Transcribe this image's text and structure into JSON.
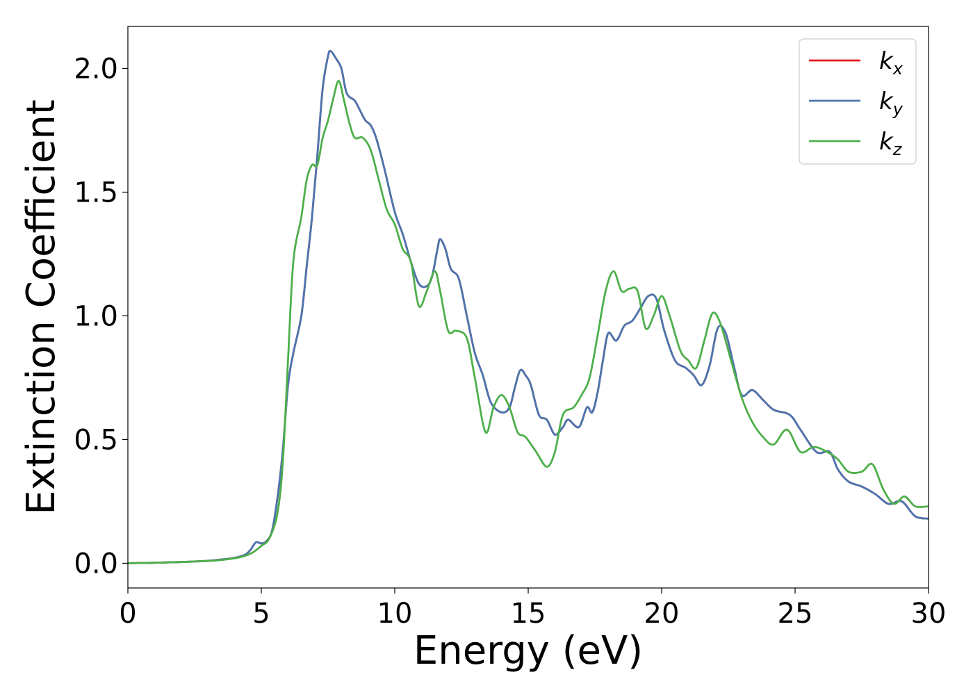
{
  "chart_data": {
    "type": "line",
    "xlabel": "Energy (eV)",
    "ylabel": "Extinction Coefficient",
    "xlim": [
      0,
      30
    ],
    "ylim": [
      -0.1,
      2.17
    ],
    "xticks": [
      "0",
      "5",
      "10",
      "15",
      "20",
      "25",
      "30"
    ],
    "xtick_values": [
      0,
      5,
      10,
      15,
      20,
      25,
      30
    ],
    "yticks": [
      "0.0",
      "0.5",
      "1.0",
      "1.5",
      "2.0"
    ],
    "ytick_values": [
      0.0,
      0.5,
      1.0,
      1.5,
      2.0
    ],
    "grid": false,
    "legend_position": "top-right",
    "series": [
      {
        "name": "k",
        "subscript": "x",
        "color": "#e41a1c",
        "points": [
          [
            0,
            0
          ],
          [
            1,
            0.002
          ],
          [
            2,
            0.005
          ],
          [
            3,
            0.01
          ],
          [
            3.5,
            0.015
          ],
          [
            4,
            0.022
          ],
          [
            4.4,
            0.035
          ],
          [
            4.6,
            0.055
          ],
          [
            4.8,
            0.085
          ],
          [
            5.0,
            0.08
          ],
          [
            5.2,
            0.09
          ],
          [
            5.4,
            0.13
          ],
          [
            5.6,
            0.26
          ],
          [
            5.8,
            0.45
          ],
          [
            6.0,
            0.72
          ],
          [
            6.2,
            0.85
          ],
          [
            6.5,
            1.0
          ],
          [
            6.7,
            1.2
          ],
          [
            6.9,
            1.4
          ],
          [
            7.1,
            1.65
          ],
          [
            7.3,
            1.92
          ],
          [
            7.5,
            2.05
          ],
          [
            7.6,
            2.07
          ],
          [
            7.8,
            2.04
          ],
          [
            8.0,
            2.0
          ],
          [
            8.2,
            1.9
          ],
          [
            8.5,
            1.87
          ],
          [
            8.7,
            1.83
          ],
          [
            8.9,
            1.79
          ],
          [
            9.1,
            1.77
          ],
          [
            9.3,
            1.72
          ],
          [
            9.6,
            1.6
          ],
          [
            10.0,
            1.42
          ],
          [
            10.3,
            1.33
          ],
          [
            10.6,
            1.22
          ],
          [
            10.9,
            1.13
          ],
          [
            11.2,
            1.12
          ],
          [
            11.4,
            1.16
          ],
          [
            11.6,
            1.27
          ],
          [
            11.7,
            1.31
          ],
          [
            11.9,
            1.27
          ],
          [
            12.1,
            1.19
          ],
          [
            12.4,
            1.15
          ],
          [
            12.7,
            1.0
          ],
          [
            13.0,
            0.85
          ],
          [
            13.3,
            0.76
          ],
          [
            13.6,
            0.65
          ],
          [
            14.0,
            0.61
          ],
          [
            14.3,
            0.63
          ],
          [
            14.5,
            0.71
          ],
          [
            14.7,
            0.78
          ],
          [
            14.9,
            0.76
          ],
          [
            15.1,
            0.72
          ],
          [
            15.4,
            0.6
          ],
          [
            15.7,
            0.58
          ],
          [
            16.0,
            0.52
          ],
          [
            16.3,
            0.55
          ],
          [
            16.5,
            0.58
          ],
          [
            16.9,
            0.55
          ],
          [
            17.2,
            0.63
          ],
          [
            17.4,
            0.61
          ],
          [
            17.6,
            0.69
          ],
          [
            17.8,
            0.82
          ],
          [
            18.0,
            0.93
          ],
          [
            18.3,
            0.9
          ],
          [
            18.6,
            0.96
          ],
          [
            18.9,
            0.98
          ],
          [
            19.2,
            1.03
          ],
          [
            19.5,
            1.08
          ],
          [
            19.8,
            1.07
          ],
          [
            20.1,
            0.94
          ],
          [
            20.5,
            0.82
          ],
          [
            20.9,
            0.79
          ],
          [
            21.2,
            0.76
          ],
          [
            21.5,
            0.72
          ],
          [
            21.8,
            0.8
          ],
          [
            22.1,
            0.95
          ],
          [
            22.4,
            0.93
          ],
          [
            22.7,
            0.8
          ],
          [
            23.0,
            0.68
          ],
          [
            23.4,
            0.7
          ],
          [
            23.8,
            0.66
          ],
          [
            24.2,
            0.62
          ],
          [
            24.8,
            0.6
          ],
          [
            25.2,
            0.54
          ],
          [
            25.8,
            0.45
          ],
          [
            26.3,
            0.45
          ],
          [
            26.6,
            0.38
          ],
          [
            27.0,
            0.33
          ],
          [
            27.5,
            0.31
          ],
          [
            28.0,
            0.28
          ],
          [
            28.5,
            0.24
          ],
          [
            29.0,
            0.25
          ],
          [
            29.5,
            0.19
          ],
          [
            30.0,
            0.18
          ]
        ]
      },
      {
        "name": "k",
        "subscript": "y",
        "color": "#4a76b0",
        "points": [
          [
            0,
            0
          ],
          [
            1,
            0.002
          ],
          [
            2,
            0.005
          ],
          [
            3,
            0.01
          ],
          [
            3.5,
            0.015
          ],
          [
            4,
            0.022
          ],
          [
            4.4,
            0.035
          ],
          [
            4.6,
            0.055
          ],
          [
            4.8,
            0.085
          ],
          [
            5.0,
            0.08
          ],
          [
            5.2,
            0.09
          ],
          [
            5.4,
            0.13
          ],
          [
            5.6,
            0.26
          ],
          [
            5.8,
            0.45
          ],
          [
            6.0,
            0.72
          ],
          [
            6.2,
            0.85
          ],
          [
            6.5,
            1.0
          ],
          [
            6.7,
            1.2
          ],
          [
            6.9,
            1.4
          ],
          [
            7.1,
            1.65
          ],
          [
            7.3,
            1.92
          ],
          [
            7.5,
            2.05
          ],
          [
            7.6,
            2.07
          ],
          [
            7.8,
            2.04
          ],
          [
            8.0,
            2.0
          ],
          [
            8.2,
            1.9
          ],
          [
            8.5,
            1.87
          ],
          [
            8.7,
            1.83
          ],
          [
            8.9,
            1.79
          ],
          [
            9.1,
            1.77
          ],
          [
            9.3,
            1.72
          ],
          [
            9.6,
            1.6
          ],
          [
            10.0,
            1.42
          ],
          [
            10.3,
            1.33
          ],
          [
            10.6,
            1.22
          ],
          [
            10.9,
            1.13
          ],
          [
            11.2,
            1.12
          ],
          [
            11.4,
            1.16
          ],
          [
            11.6,
            1.27
          ],
          [
            11.7,
            1.31
          ],
          [
            11.9,
            1.27
          ],
          [
            12.1,
            1.19
          ],
          [
            12.4,
            1.15
          ],
          [
            12.7,
            1.0
          ],
          [
            13.0,
            0.85
          ],
          [
            13.3,
            0.76
          ],
          [
            13.6,
            0.65
          ],
          [
            14.0,
            0.61
          ],
          [
            14.3,
            0.63
          ],
          [
            14.5,
            0.71
          ],
          [
            14.7,
            0.78
          ],
          [
            14.9,
            0.76
          ],
          [
            15.1,
            0.72
          ],
          [
            15.4,
            0.6
          ],
          [
            15.7,
            0.58
          ],
          [
            16.0,
            0.52
          ],
          [
            16.3,
            0.55
          ],
          [
            16.5,
            0.58
          ],
          [
            16.9,
            0.55
          ],
          [
            17.2,
            0.63
          ],
          [
            17.4,
            0.61
          ],
          [
            17.6,
            0.69
          ],
          [
            17.8,
            0.82
          ],
          [
            18.0,
            0.93
          ],
          [
            18.3,
            0.9
          ],
          [
            18.6,
            0.96
          ],
          [
            18.9,
            0.98
          ],
          [
            19.2,
            1.03
          ],
          [
            19.5,
            1.08
          ],
          [
            19.8,
            1.07
          ],
          [
            20.1,
            0.94
          ],
          [
            20.5,
            0.82
          ],
          [
            20.9,
            0.79
          ],
          [
            21.2,
            0.76
          ],
          [
            21.5,
            0.72
          ],
          [
            21.8,
            0.8
          ],
          [
            22.1,
            0.95
          ],
          [
            22.4,
            0.93
          ],
          [
            22.7,
            0.8
          ],
          [
            23.0,
            0.68
          ],
          [
            23.4,
            0.7
          ],
          [
            23.8,
            0.66
          ],
          [
            24.2,
            0.62
          ],
          [
            24.8,
            0.6
          ],
          [
            25.2,
            0.54
          ],
          [
            25.8,
            0.45
          ],
          [
            26.3,
            0.45
          ],
          [
            26.6,
            0.38
          ],
          [
            27.0,
            0.33
          ],
          [
            27.5,
            0.31
          ],
          [
            28.0,
            0.28
          ],
          [
            28.5,
            0.24
          ],
          [
            29.0,
            0.25
          ],
          [
            29.5,
            0.19
          ],
          [
            30.0,
            0.18
          ]
        ]
      },
      {
        "name": "k",
        "subscript": "z",
        "color": "#4daf4a",
        "points": [
          [
            0,
            0
          ],
          [
            1,
            0.002
          ],
          [
            2,
            0.005
          ],
          [
            3,
            0.009
          ],
          [
            3.5,
            0.013
          ],
          [
            4,
            0.02
          ],
          [
            4.4,
            0.03
          ],
          [
            4.7,
            0.045
          ],
          [
            5.0,
            0.07
          ],
          [
            5.3,
            0.1
          ],
          [
            5.6,
            0.2
          ],
          [
            5.8,
            0.4
          ],
          [
            6.0,
            0.82
          ],
          [
            6.2,
            1.22
          ],
          [
            6.5,
            1.4
          ],
          [
            6.7,
            1.55
          ],
          [
            6.9,
            1.61
          ],
          [
            7.1,
            1.61
          ],
          [
            7.3,
            1.72
          ],
          [
            7.5,
            1.79
          ],
          [
            7.7,
            1.88
          ],
          [
            7.9,
            1.95
          ],
          [
            8.1,
            1.87
          ],
          [
            8.3,
            1.78
          ],
          [
            8.5,
            1.72
          ],
          [
            8.8,
            1.72
          ],
          [
            9.1,
            1.67
          ],
          [
            9.4,
            1.55
          ],
          [
            9.7,
            1.43
          ],
          [
            10.0,
            1.37
          ],
          [
            10.3,
            1.27
          ],
          [
            10.6,
            1.22
          ],
          [
            10.9,
            1.04
          ],
          [
            11.2,
            1.1
          ],
          [
            11.5,
            1.18
          ],
          [
            11.7,
            1.1
          ],
          [
            12.0,
            0.94
          ],
          [
            12.3,
            0.94
          ],
          [
            12.7,
            0.91
          ],
          [
            13.0,
            0.75
          ],
          [
            13.4,
            0.53
          ],
          [
            13.7,
            0.63
          ],
          [
            14.0,
            0.68
          ],
          [
            14.3,
            0.63
          ],
          [
            14.6,
            0.53
          ],
          [
            14.9,
            0.51
          ],
          [
            15.3,
            0.45
          ],
          [
            15.7,
            0.39
          ],
          [
            16.0,
            0.45
          ],
          [
            16.3,
            0.6
          ],
          [
            16.7,
            0.63
          ],
          [
            17.0,
            0.68
          ],
          [
            17.3,
            0.75
          ],
          [
            17.6,
            0.92
          ],
          [
            17.9,
            1.1
          ],
          [
            18.2,
            1.18
          ],
          [
            18.5,
            1.1
          ],
          [
            18.8,
            1.11
          ],
          [
            19.1,
            1.1
          ],
          [
            19.4,
            0.95
          ],
          [
            19.7,
            1.0
          ],
          [
            20.0,
            1.08
          ],
          [
            20.3,
            1.0
          ],
          [
            20.7,
            0.86
          ],
          [
            21.0,
            0.82
          ],
          [
            21.3,
            0.79
          ],
          [
            21.6,
            0.9
          ],
          [
            21.9,
            1.01
          ],
          [
            22.2,
            0.97
          ],
          [
            22.6,
            0.82
          ],
          [
            23.0,
            0.67
          ],
          [
            23.4,
            0.57
          ],
          [
            23.8,
            0.51
          ],
          [
            24.2,
            0.48
          ],
          [
            24.7,
            0.54
          ],
          [
            25.2,
            0.45
          ],
          [
            25.7,
            0.47
          ],
          [
            26.2,
            0.45
          ],
          [
            26.6,
            0.42
          ],
          [
            27.0,
            0.37
          ],
          [
            27.5,
            0.37
          ],
          [
            27.9,
            0.4
          ],
          [
            28.3,
            0.3
          ],
          [
            28.7,
            0.24
          ],
          [
            29.1,
            0.27
          ],
          [
            29.5,
            0.23
          ],
          [
            30.0,
            0.23
          ]
        ]
      }
    ]
  }
}
